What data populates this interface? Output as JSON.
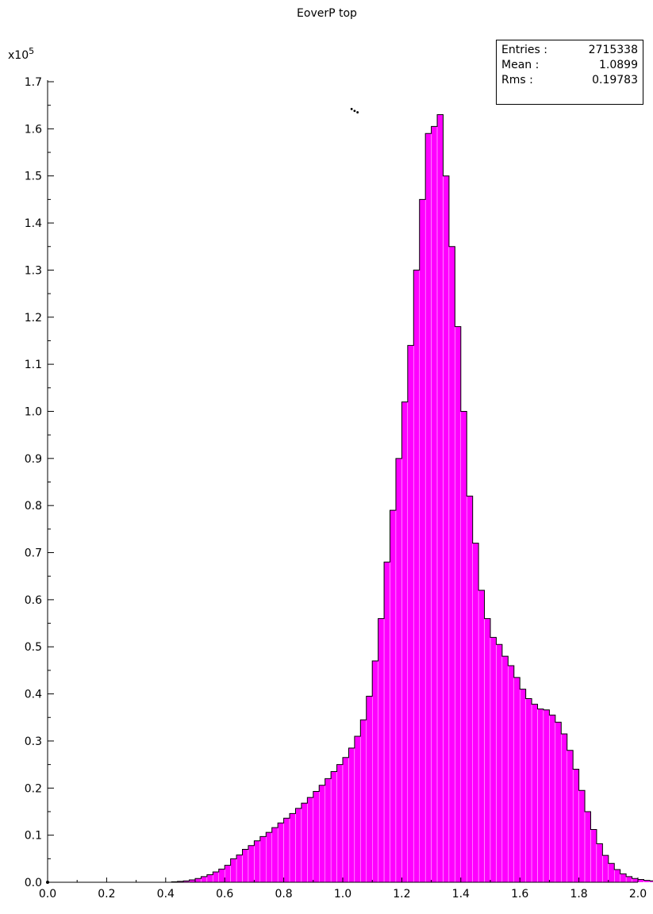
{
  "chart_data": {
    "type": "histogram",
    "title": "EoverP top",
    "y_multiplier": "x10",
    "y_multiplier_exp": "5",
    "xlim": [
      0.0,
      2.0
    ],
    "ylim": [
      0.0,
      1.7
    ],
    "x_ticks": [
      "0.0",
      "0.2",
      "0.4",
      "0.6",
      "0.8",
      "1.0",
      "1.2",
      "1.4",
      "1.6",
      "1.8",
      "2.0"
    ],
    "y_ticks": [
      "0.0",
      "0.1",
      "0.2",
      "0.3",
      "0.4",
      "0.5",
      "0.6",
      "0.7",
      "0.8",
      "0.9",
      "1.0",
      "1.1",
      "1.2",
      "1.3",
      "1.4",
      "1.5",
      "1.6",
      "1.7"
    ],
    "bin_width": 0.02,
    "bin_start": 0.42,
    "bin_values": [
      0.001,
      0.002,
      0.003,
      0.005,
      0.008,
      0.012,
      0.016,
      0.022,
      0.028,
      0.036,
      0.05,
      0.058,
      0.07,
      0.078,
      0.088,
      0.097,
      0.106,
      0.116,
      0.126,
      0.136,
      0.146,
      0.157,
      0.168,
      0.18,
      0.193,
      0.206,
      0.22,
      0.235,
      0.25,
      0.265,
      0.285,
      0.31,
      0.345,
      0.395,
      0.47,
      0.56,
      0.68,
      0.79,
      0.9,
      1.02,
      1.14,
      1.3,
      1.45,
      1.59,
      1.605,
      1.63,
      1.5,
      1.35,
      1.18,
      1.0,
      0.82,
      0.72,
      0.62,
      0.56,
      0.52,
      0.505,
      0.48,
      0.46,
      0.435,
      0.41,
      0.39,
      0.378,
      0.368,
      0.366,
      0.355,
      0.34,
      0.315,
      0.28,
      0.24,
      0.195,
      0.15,
      0.112,
      0.082,
      0.057,
      0.04,
      0.027,
      0.018,
      0.012,
      0.008,
      0.006,
      0.004,
      0.003,
      0.002,
      0.001,
      0.001,
      0.001,
      0.0005,
      0.0005,
      0.0003
    ],
    "peak_points": [
      {
        "x": 1.03,
        "y": 1.642
      },
      {
        "x": 1.04,
        "y": 1.638
      },
      {
        "x": 1.05,
        "y": 1.635
      }
    ],
    "fill_color": "#ff00ff",
    "stats": {
      "entries_label": "Entries :",
      "entries_value": "2715338",
      "mean_label": "Mean :",
      "mean_value": "1.0899",
      "rms_label": "Rms :",
      "rms_value": "0.19783"
    }
  }
}
